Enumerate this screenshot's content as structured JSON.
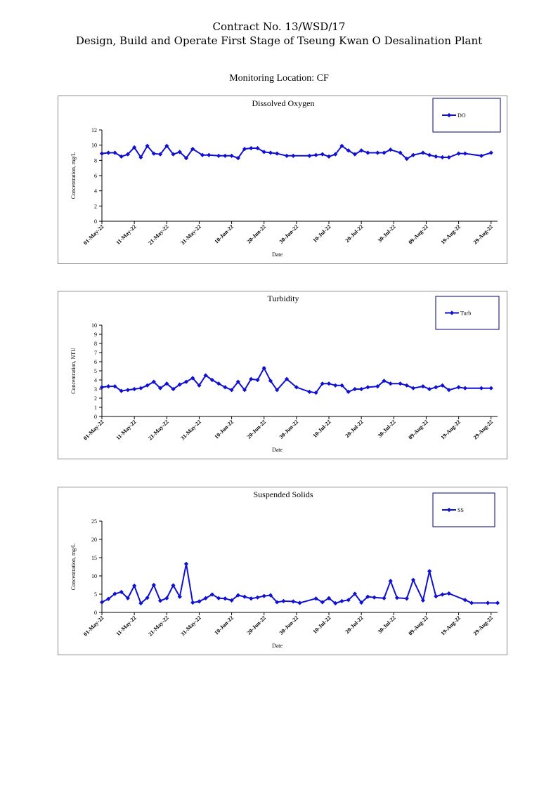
{
  "page": {
    "header_line1": "Contract No. 13/WSD/17",
    "header_line2": "Design, Build and Operate First Stage of Tseung Kwan O Desalination Plant",
    "location": "Monitoring Location: CF"
  },
  "style": {
    "series_color": "#1010d0",
    "legend_border": "#000080",
    "frame_border": "#8c8c8c"
  },
  "chart_data": [
    {
      "type": "line",
      "title": "Dissolved Oxygen",
      "xlabel": "Date",
      "ylabel": "Concentration, mg/L",
      "ylim": [
        0,
        12
      ],
      "yticks": [
        0,
        2,
        4,
        6,
        8,
        10,
        12
      ],
      "xlim": [
        "2022-05-01",
        "2022-08-31"
      ],
      "xticks": [
        "01-May-22",
        "11-May-22",
        "21-May-22",
        "31-May-22",
        "10-Jun-22",
        "20-Jun-22",
        "30-Jun-22",
        "10-Jul-22",
        "20-Jul-22",
        "30-Jul-22",
        "09-Aug-22",
        "19-Aug-22",
        "29-Aug-22"
      ],
      "legend_position": "top-right",
      "grid": false,
      "series": [
        {
          "name": "DO",
          "x": [
            "2022-05-01",
            "2022-05-03",
            "2022-05-05",
            "2022-05-07",
            "2022-05-09",
            "2022-05-11",
            "2022-05-13",
            "2022-05-15",
            "2022-05-17",
            "2022-05-19",
            "2022-05-21",
            "2022-05-23",
            "2022-05-25",
            "2022-05-27",
            "2022-05-29",
            "2022-06-01",
            "2022-06-03",
            "2022-06-06",
            "2022-06-08",
            "2022-06-10",
            "2022-06-12",
            "2022-06-14",
            "2022-06-16",
            "2022-06-18",
            "2022-06-20",
            "2022-06-22",
            "2022-06-24",
            "2022-06-27",
            "2022-06-29",
            "2022-07-04",
            "2022-07-06",
            "2022-07-08",
            "2022-07-10",
            "2022-07-12",
            "2022-07-14",
            "2022-07-16",
            "2022-07-18",
            "2022-07-20",
            "2022-07-22",
            "2022-07-25",
            "2022-07-27",
            "2022-07-29",
            "2022-08-01",
            "2022-08-03",
            "2022-08-05",
            "2022-08-08",
            "2022-08-10",
            "2022-08-12",
            "2022-08-14",
            "2022-08-16",
            "2022-08-19",
            "2022-08-21",
            "2022-08-26",
            "2022-08-29"
          ],
          "values": [
            8.9,
            9.0,
            9.0,
            8.5,
            8.8,
            9.7,
            8.4,
            9.9,
            8.9,
            8.8,
            9.9,
            8.8,
            9.1,
            8.3,
            9.5,
            8.7,
            8.7,
            8.6,
            8.6,
            8.6,
            8.3,
            9.5,
            9.6,
            9.6,
            9.1,
            9.0,
            8.9,
            8.6,
            8.6,
            8.6,
            8.7,
            8.8,
            8.5,
            8.8,
            9.9,
            9.3,
            8.8,
            9.3,
            9.0,
            9.0,
            9.0,
            9.4,
            9.0,
            8.2,
            8.7,
            9.0,
            8.7,
            8.5,
            8.4,
            8.4,
            8.9,
            8.9,
            8.6,
            9.0
          ]
        }
      ]
    },
    {
      "type": "line",
      "title": "Turbidity",
      "xlabel": "Date",
      "ylabel": "Concentration, NTU",
      "ylim": [
        0,
        10
      ],
      "yticks": [
        0,
        1,
        2,
        3,
        4,
        5,
        6,
        7,
        8,
        9,
        10
      ],
      "xlim": [
        "2022-05-01",
        "2022-08-31"
      ],
      "xticks": [
        "01-May-22",
        "11-May-22",
        "21-May-22",
        "31-May-22",
        "10-Jun-22",
        "20-Jun-22",
        "30-Jun-22",
        "10-Jul-22",
        "20-Jul-22",
        "30-Jul-22",
        "09-Aug-22",
        "19-Aug-22",
        "29-Aug-22"
      ],
      "legend_position": "top-right",
      "grid": false,
      "series": [
        {
          "name": "Turb",
          "x": [
            "2022-05-01",
            "2022-05-03",
            "2022-05-05",
            "2022-05-07",
            "2022-05-09",
            "2022-05-11",
            "2022-05-13",
            "2022-05-15",
            "2022-05-17",
            "2022-05-19",
            "2022-05-21",
            "2022-05-23",
            "2022-05-25",
            "2022-05-27",
            "2022-05-29",
            "2022-05-31",
            "2022-06-02",
            "2022-06-04",
            "2022-06-06",
            "2022-06-08",
            "2022-06-10",
            "2022-06-12",
            "2022-06-14",
            "2022-06-16",
            "2022-06-18",
            "2022-06-20",
            "2022-06-22",
            "2022-06-24",
            "2022-06-27",
            "2022-06-30",
            "2022-07-04",
            "2022-07-06",
            "2022-07-08",
            "2022-07-10",
            "2022-07-12",
            "2022-07-14",
            "2022-07-16",
            "2022-07-18",
            "2022-07-20",
            "2022-07-22",
            "2022-07-25",
            "2022-07-27",
            "2022-07-29",
            "2022-08-01",
            "2022-08-03",
            "2022-08-05",
            "2022-08-08",
            "2022-08-10",
            "2022-08-12",
            "2022-08-14",
            "2022-08-16",
            "2022-08-19",
            "2022-08-21",
            "2022-08-26",
            "2022-08-29"
          ],
          "values": [
            3.2,
            3.3,
            3.3,
            2.8,
            2.9,
            3.0,
            3.1,
            3.4,
            3.8,
            3.1,
            3.6,
            3.0,
            3.5,
            3.8,
            4.2,
            3.4,
            4.5,
            4.0,
            3.6,
            3.2,
            2.9,
            3.8,
            2.9,
            4.1,
            4.0,
            5.3,
            3.9,
            2.9,
            4.1,
            3.2,
            2.7,
            2.6,
            3.6,
            3.6,
            3.4,
            3.4,
            2.7,
            3.0,
            3.0,
            3.2,
            3.3,
            3.9,
            3.6,
            3.6,
            3.4,
            3.1,
            3.3,
            3.0,
            3.2,
            3.4,
            2.9,
            3.2,
            3.1,
            3.1,
            3.1
          ]
        }
      ]
    },
    {
      "type": "line",
      "title": "Suspended Solids",
      "xlabel": "Date",
      "ylabel": "Concentration, mg/L",
      "ylim": [
        0,
        25
      ],
      "yticks": [
        0,
        5,
        10,
        15,
        20,
        25
      ],
      "xlim": [
        "2022-05-01",
        "2022-08-31"
      ],
      "xticks": [
        "01-May-22",
        "11-May-22",
        "21-May-22",
        "31-May-22",
        "10-Jun-22",
        "20-Jun-22",
        "30-Jun-22",
        "10-Jul-22",
        "20-Jul-22",
        "30-Jul-22",
        "09-Aug-22",
        "19-Aug-22",
        "29-Aug-22"
      ],
      "legend_position": "top-right",
      "grid": false,
      "series": [
        {
          "name": "SS",
          "x": [
            "2022-05-01",
            "2022-05-03",
            "2022-05-05",
            "2022-05-07",
            "2022-05-09",
            "2022-05-11",
            "2022-05-13",
            "2022-05-15",
            "2022-05-17",
            "2022-05-19",
            "2022-05-21",
            "2022-05-23",
            "2022-05-25",
            "2022-05-27",
            "2022-05-29",
            "2022-05-31",
            "2022-06-02",
            "2022-06-04",
            "2022-06-06",
            "2022-06-08",
            "2022-06-10",
            "2022-06-12",
            "2022-06-14",
            "2022-06-16",
            "2022-06-18",
            "2022-06-20",
            "2022-06-22",
            "2022-06-24",
            "2022-06-26",
            "2022-06-29",
            "2022-07-01",
            "2022-07-06",
            "2022-07-08",
            "2022-07-10",
            "2022-07-12",
            "2022-07-14",
            "2022-07-16",
            "2022-07-18",
            "2022-07-20",
            "2022-07-22",
            "2022-07-24",
            "2022-07-27",
            "2022-07-29",
            "2022-07-31",
            "2022-08-03",
            "2022-08-05",
            "2022-08-08",
            "2022-08-10",
            "2022-08-12",
            "2022-08-14",
            "2022-08-16",
            "2022-08-21",
            "2022-08-23",
            "2022-08-28",
            "2022-08-31"
          ],
          "values": [
            2.8,
            3.7,
            5.1,
            5.6,
            3.9,
            7.3,
            2.5,
            4.0,
            7.5,
            3.2,
            3.9,
            7.4,
            4.3,
            13.3,
            2.7,
            3.0,
            3.9,
            4.9,
            3.9,
            3.8,
            3.3,
            4.7,
            4.3,
            3.8,
            4.1,
            4.5,
            4.7,
            2.8,
            3.1,
            3.0,
            2.6,
            3.8,
            2.8,
            3.9,
            2.5,
            3.1,
            3.4,
            5.1,
            2.7,
            4.3,
            4.1,
            3.9,
            8.6,
            4.0,
            3.8,
            8.9,
            3.3,
            11.3,
            4.4,
            4.9,
            5.2,
            3.4,
            2.6,
            2.6,
            2.6
          ]
        }
      ]
    }
  ]
}
